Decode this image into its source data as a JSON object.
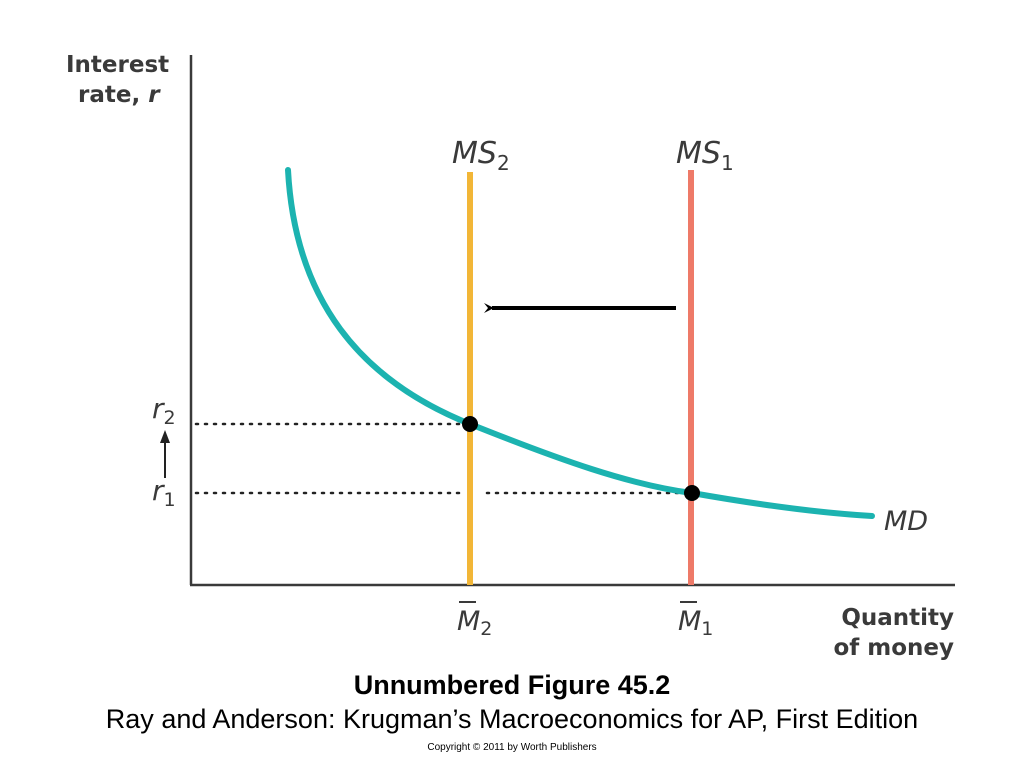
{
  "figure": {
    "y_axis_title_line1": "Interest",
    "y_axis_title_line2": "rate,",
    "y_axis_title_var": "r",
    "x_axis_title_line1": "Quantity",
    "x_axis_title_line2": "of money",
    "curve_labels": {
      "ms2": {
        "base": "MS",
        "sub": "2"
      },
      "ms1": {
        "base": "MS",
        "sub": "1"
      },
      "md": "MD"
    },
    "rate_labels": {
      "r2": {
        "base": "r",
        "sub": "2"
      },
      "r1": {
        "base": "r",
        "sub": "1"
      }
    },
    "quantity_labels": {
      "m2": {
        "base": "M",
        "sub": "2"
      },
      "m1": {
        "base": "M",
        "sub": "1"
      }
    },
    "colors": {
      "md_curve": "#1cb3b0",
      "ms2_line": "#f2b637",
      "ms1_line": "#ee7a68",
      "axis": "#3a3a3a",
      "arrow": "#000000"
    },
    "shift_arrow_direction": "left",
    "rate_change_arrow_direction": "up"
  },
  "caption": {
    "title": "Unnumbered Figure 45.2",
    "subtitle": "Ray and Anderson: Krugman’s Macroeconomics for AP, First Edition",
    "copyright": "Copyright © 2011 by Worth Publishers"
  }
}
